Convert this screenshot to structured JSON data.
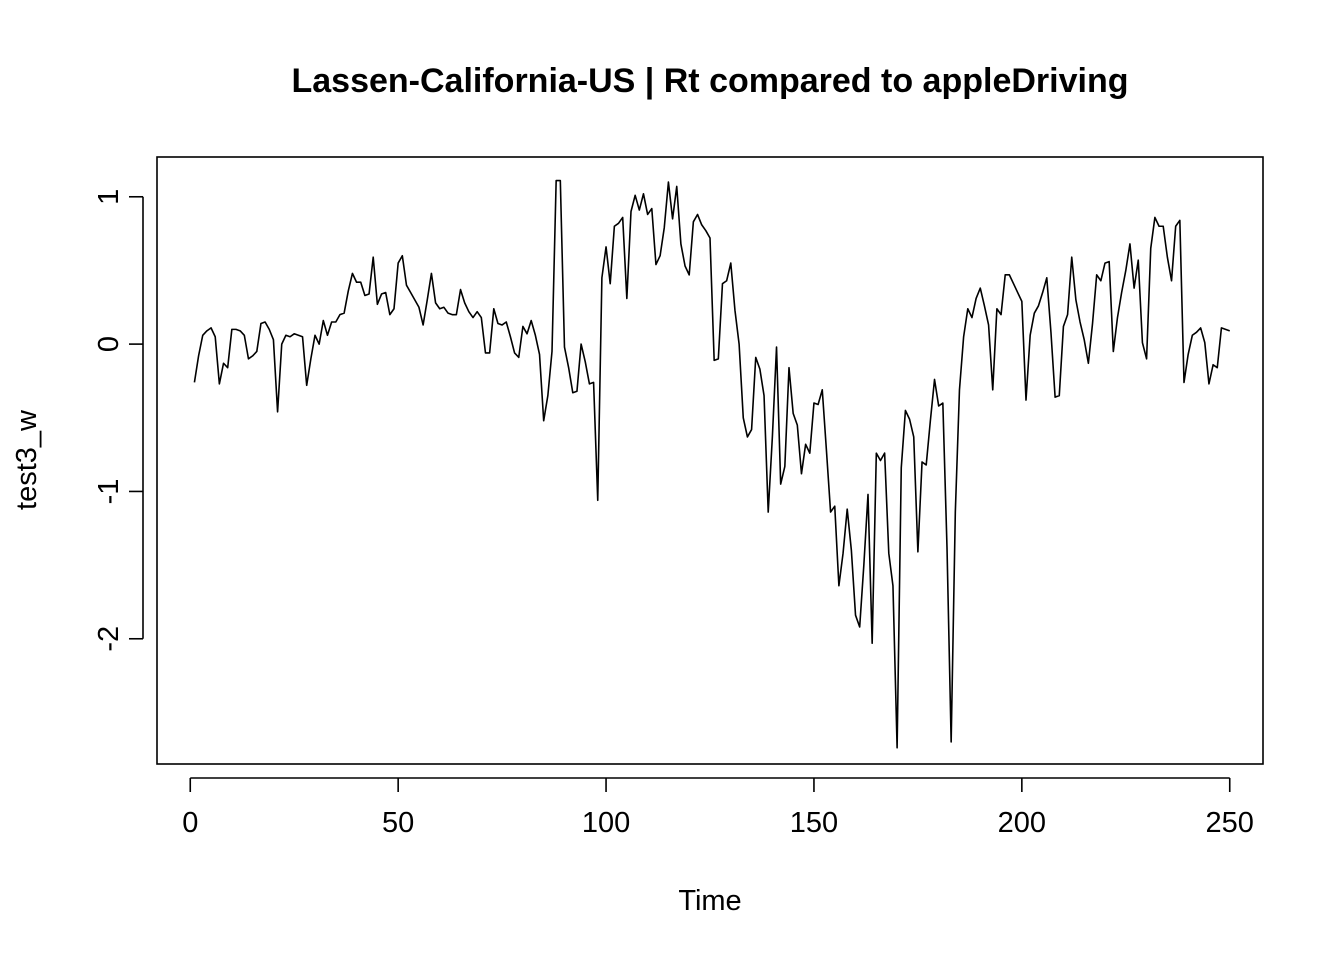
{
  "chart_data": {
    "type": "line",
    "title": "Lassen-California-US | Rt compared to appleDriving",
    "xlabel": "Time",
    "ylabel": "test3_w",
    "xlim": [
      -8,
      258
    ],
    "ylim": [
      -2.85,
      1.27
    ],
    "xticks": [
      0,
      50,
      100,
      150,
      200,
      250
    ],
    "yticks": [
      -2,
      -1,
      0,
      1
    ],
    "grid": false,
    "line_color": "#000000",
    "series": [
      {
        "x_start": 1,
        "values": [
          -0.26,
          -0.08,
          0.06,
          0.09,
          0.11,
          0.05,
          -0.27,
          -0.13,
          -0.16,
          0.1,
          0.1,
          0.09,
          0.06,
          -0.1,
          -0.08,
          -0.05,
          0.14,
          0.15,
          0.1,
          0.03,
          -0.46,
          0.0,
          0.06,
          0.05,
          0.07,
          0.06,
          0.05,
          -0.28,
          -0.1,
          0.06,
          0.0,
          0.16,
          0.06,
          0.15,
          0.15,
          0.2,
          0.21,
          0.36,
          0.48,
          0.42,
          0.42,
          0.33,
          0.34,
          0.59,
          0.27,
          0.34,
          0.35,
          0.2,
          0.24,
          0.55,
          0.6,
          0.4,
          0.35,
          0.3,
          0.25,
          0.13,
          0.3,
          0.48,
          0.28,
          0.24,
          0.25,
          0.21,
          0.2,
          0.2,
          0.37,
          0.28,
          0.22,
          0.18,
          0.22,
          0.18,
          -0.06,
          -0.06,
          0.24,
          0.14,
          0.13,
          0.15,
          0.05,
          -0.06,
          -0.09,
          0.12,
          0.07,
          0.16,
          0.06,
          -0.07,
          -0.52,
          -0.35,
          -0.05,
          1.11,
          1.11,
          -0.02,
          -0.16,
          -0.33,
          -0.32,
          0.0,
          -0.12,
          -0.27,
          -0.26,
          -1.06,
          0.45,
          0.66,
          0.41,
          0.8,
          0.82,
          0.86,
          0.31,
          0.9,
          1.01,
          0.91,
          1.02,
          0.88,
          0.92,
          0.54,
          0.6,
          0.79,
          1.1,
          0.85,
          1.07,
          0.68,
          0.53,
          0.47,
          0.83,
          0.88,
          0.81,
          0.77,
          0.72,
          -0.11,
          -0.1,
          0.41,
          0.43,
          0.55,
          0.23,
          0.0,
          -0.5,
          -0.63,
          -0.58,
          -0.09,
          -0.17,
          -0.35,
          -1.14,
          -0.63,
          -0.02,
          -0.95,
          -0.83,
          -0.16,
          -0.47,
          -0.55,
          -0.88,
          -0.68,
          -0.74,
          -0.4,
          -0.41,
          -0.31,
          -0.72,
          -1.14,
          -1.1,
          -1.64,
          -1.42,
          -1.12,
          -1.4,
          -1.84,
          -1.92,
          -1.5,
          -1.02,
          -2.03,
          -0.74,
          -0.79,
          -0.74,
          -1.42,
          -1.64,
          -2.74,
          -0.84,
          -0.45,
          -0.51,
          -0.63,
          -1.41,
          -0.8,
          -0.82,
          -0.52,
          -0.24,
          -0.42,
          -0.4,
          -1.38,
          -2.7,
          -1.14,
          -0.31,
          0.05,
          0.24,
          0.18,
          0.31,
          0.38,
          0.26,
          0.13,
          -0.31,
          0.24,
          0.2,
          0.47,
          0.47,
          0.41,
          0.35,
          0.29,
          -0.38,
          0.06,
          0.21,
          0.26,
          0.35,
          0.45,
          0.08,
          -0.36,
          -0.35,
          0.12,
          0.2,
          0.59,
          0.3,
          0.15,
          0.03,
          -0.13,
          0.14,
          0.47,
          0.43,
          0.55,
          0.56,
          -0.05,
          0.18,
          0.35,
          0.5,
          0.68,
          0.38,
          0.57,
          0.01,
          -0.1,
          0.65,
          0.86,
          0.8,
          0.8,
          0.59,
          0.43,
          0.8,
          0.84,
          -0.26,
          -0.07,
          0.06,
          0.08,
          0.11,
          0.01,
          -0.27,
          -0.14,
          -0.16,
          0.11,
          0.1,
          0.09
        ]
      }
    ]
  }
}
